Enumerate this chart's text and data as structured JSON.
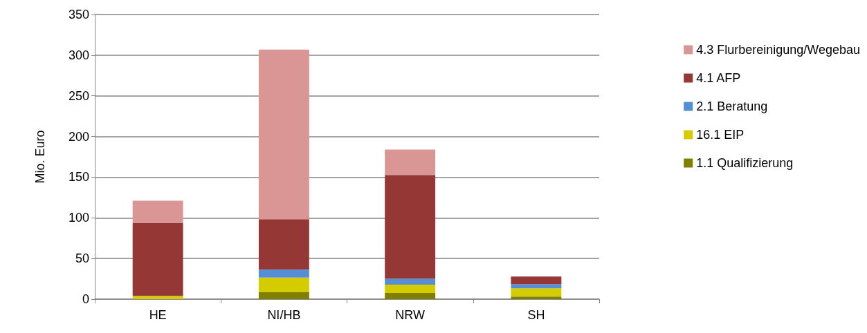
{
  "chart_data": {
    "type": "bar",
    "stacked": true,
    "ylabel": "Mio. Euro",
    "categories": [
      "HE",
      "NI/HB",
      "NRW",
      "SH"
    ],
    "ylim": [
      0,
      350
    ],
    "yticks": [
      0,
      50,
      100,
      150,
      200,
      250,
      300,
      350
    ],
    "grid": "y",
    "legend": "right",
    "series": [
      {
        "name": "1.1 Qualifizierung",
        "color": "#7f7f00",
        "values": [
          0,
          8.4,
          7.7,
          3.2
        ]
      },
      {
        "name": "16.1 EIP",
        "color": "#d4cc00",
        "values": [
          4,
          18.2,
          10.1,
          10.1
        ]
      },
      {
        "name": "2.1 Beratung",
        "color": "#558ed5",
        "values": [
          0,
          9.7,
          7.3,
          5.2
        ]
      },
      {
        "name": "4.1 AFP",
        "color": "#953735",
        "values": [
          89.5,
          62,
          127.5,
          9.3
        ]
      },
      {
        "name": "4.3 Flurbereinigung/Wegebau",
        "color": "#d99694",
        "values": [
          27.5,
          208.6,
          31.3,
          0
        ]
      }
    ]
  }
}
